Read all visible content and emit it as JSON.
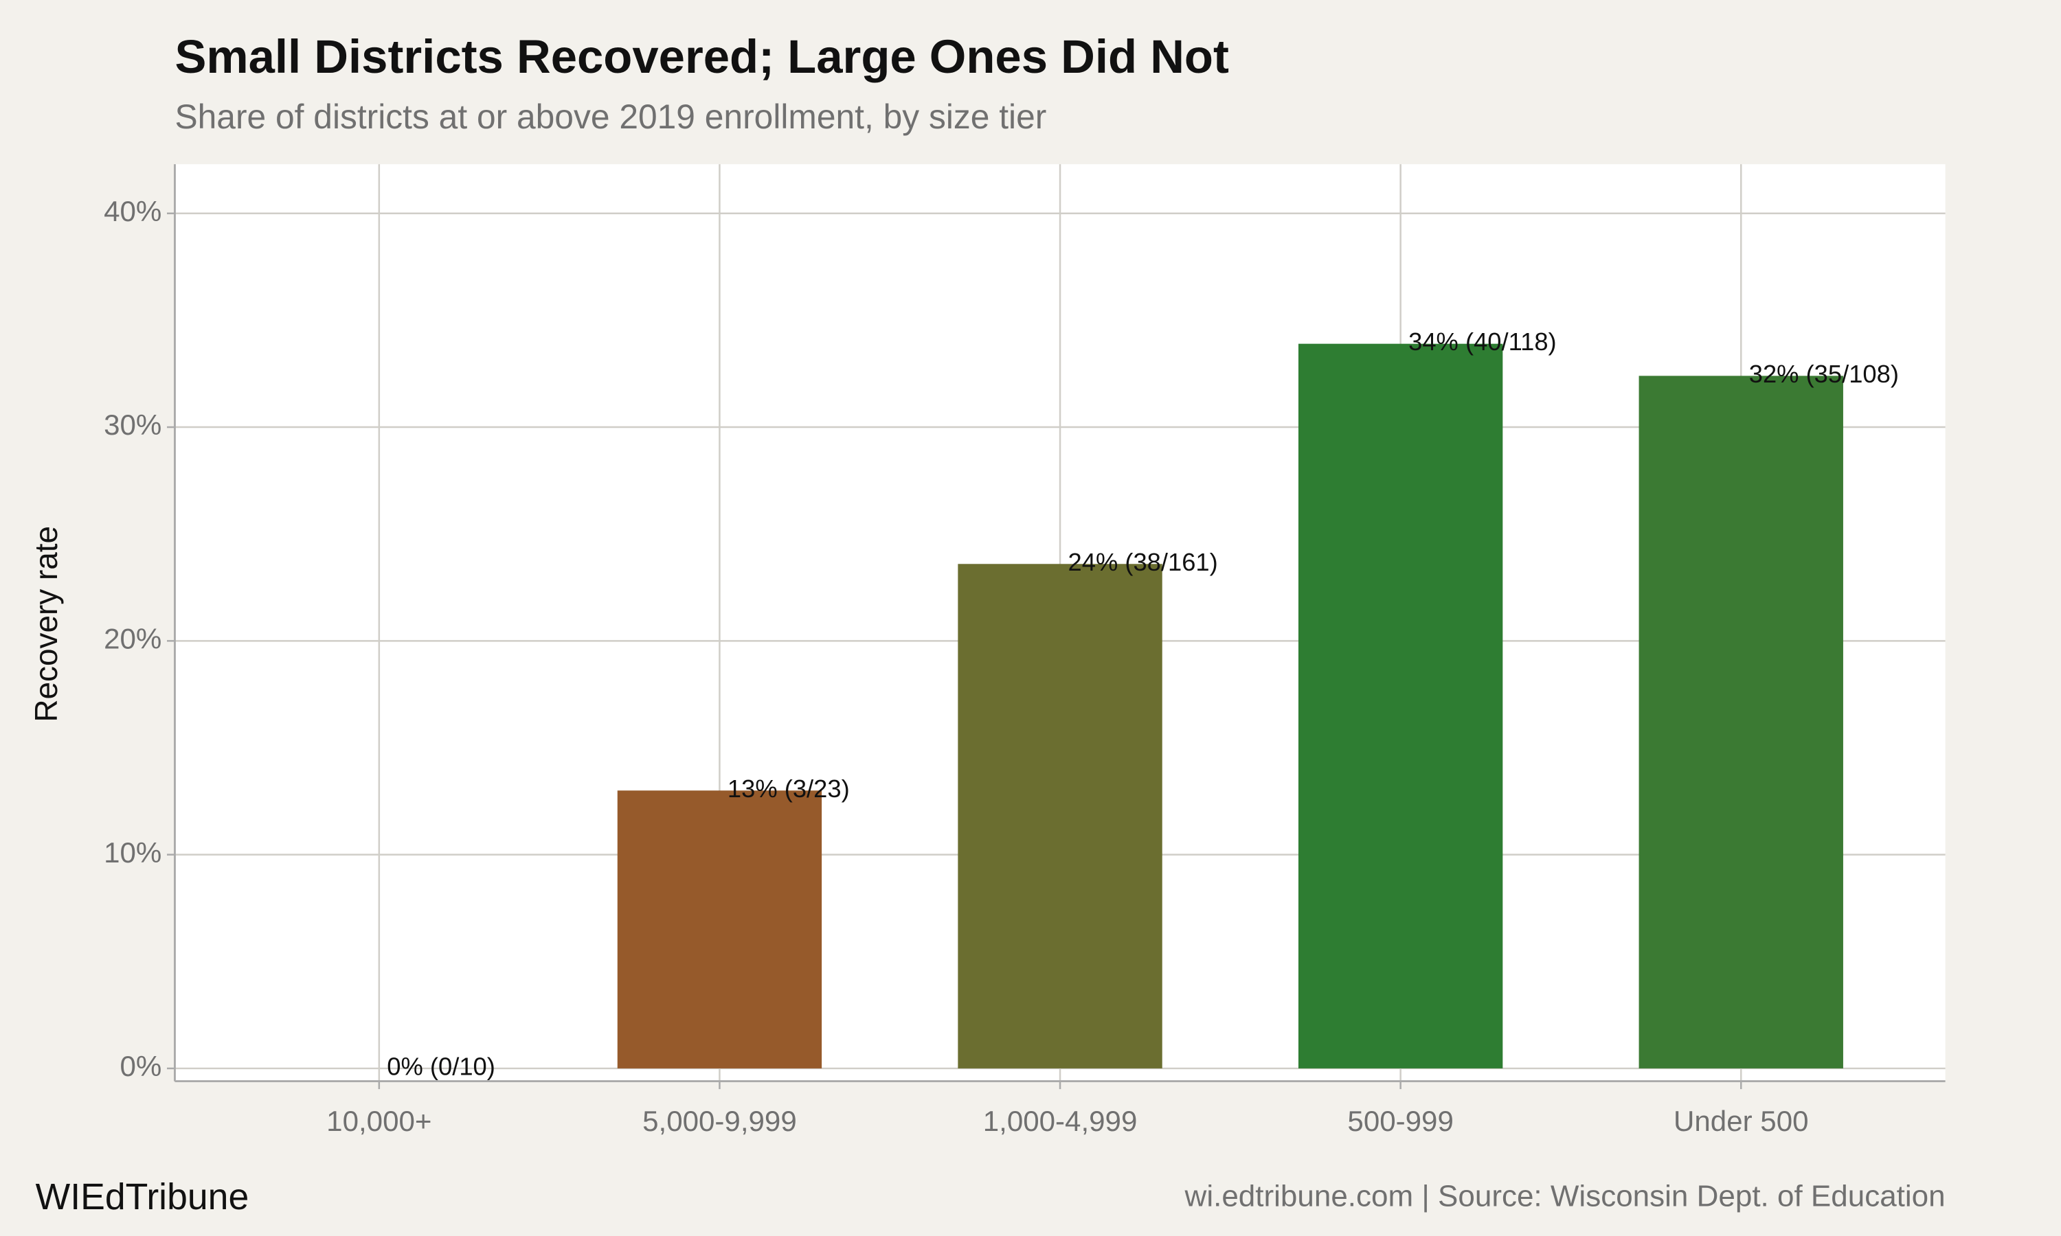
{
  "chart_data": {
    "type": "bar",
    "title": "Small Districts Recovered; Large Ones Did Not",
    "subtitle": "Share of districts at or above 2019 enrollment, by size tier",
    "y_label": "Recovery rate",
    "categories": [
      "10,000+",
      "5,000-9,999",
      "1,000-4,999",
      "500-999",
      "Under 500"
    ],
    "values": [
      0,
      13.0,
      23.6,
      33.9,
      32.4
    ],
    "value_labels": [
      "0% (0/10)",
      "13% (3/23)",
      "24% (38/161)",
      "34% (40/118)",
      "32% (35/108)"
    ],
    "colors": [
      "#a0522d",
      "#965a2b",
      "#6b6e30",
      "#2e7d32",
      "#3b7a33"
    ],
    "ylim": [
      -0.6,
      42.3
    ],
    "yticks": [
      {
        "value": 0,
        "label": "0%"
      },
      {
        "value": 10,
        "label": "10%"
      },
      {
        "value": 20,
        "label": "20%"
      },
      {
        "value": 30,
        "label": "30%"
      },
      {
        "value": 40,
        "label": "40%"
      }
    ],
    "grid": true,
    "brand": "WIEdTribune",
    "source": "wi.edtribune.com | Source: Wisconsin Dept. of Education"
  }
}
